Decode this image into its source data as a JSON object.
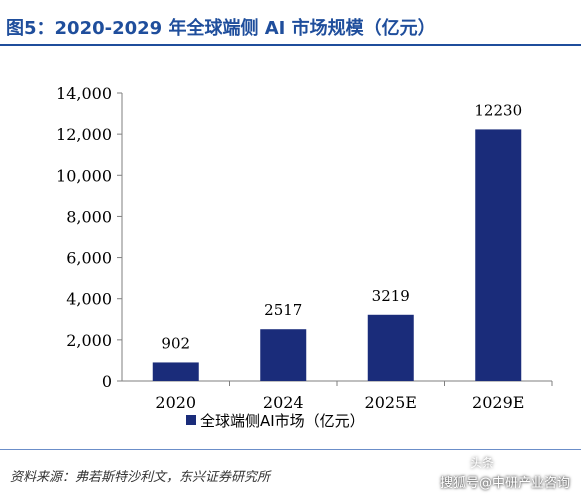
{
  "header": {
    "title": "图5：2020-2029 年全球端侧 AI 市场规模（亿元）"
  },
  "footer": {
    "source": "资料来源：弗若斯特沙利文，东兴证券研究所",
    "watermark_top": "头条",
    "watermark": "搜狐号@中研产业咨询"
  },
  "colors": {
    "bar": "#1a2c7a",
    "title": "#1f4e9c"
  },
  "chart_data": {
    "type": "bar",
    "categories": [
      "2020",
      "2024",
      "2025E",
      "2029E"
    ],
    "series": [
      {
        "name": "全球端侧AI市场（亿元）",
        "values": [
          902,
          2517,
          3219,
          12230
        ]
      }
    ],
    "data_labels": [
      "902",
      "2517",
      "3219",
      "12230"
    ],
    "y_ticks": [
      "0",
      "2,000",
      "4,000",
      "6,000",
      "8,000",
      "10,000",
      "12,000",
      "14,000"
    ],
    "ylim": [
      0,
      14000
    ],
    "grid": false,
    "legend_position": "bottom-center"
  }
}
